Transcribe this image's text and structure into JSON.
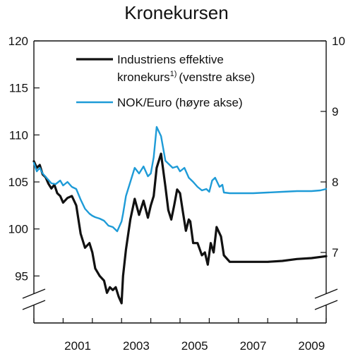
{
  "chart_data": {
    "type": "line",
    "title": "Kronekursen",
    "legend_position": "top-left",
    "x_range": [
      2000.0,
      2010.0
    ],
    "x_tick_labels": [
      "2001",
      "2003",
      "2005",
      "2007",
      "2009"
    ],
    "left_axis": {
      "range": [
        90,
        120
      ],
      "tick_values": [
        95,
        100,
        105,
        110,
        115,
        120
      ],
      "axis_break": true
    },
    "right_axis": {
      "range": [
        6,
        10
      ],
      "tick_values": [
        7,
        8,
        9,
        10
      ],
      "axis_break": true
    },
    "series": [
      {
        "name": "Industriens effektive kronekurs",
        "name_part1": "Industriens effektive",
        "name_part2": "kronekurs",
        "footnote": "1)",
        "name_suffix": "(venstre akse)",
        "axis": "left",
        "color": "#111111",
        "x": [
          2000.0,
          2000.1,
          2000.2,
          2000.3,
          2000.4,
          2000.5,
          2000.6,
          2000.7,
          2000.8,
          2000.9,
          2001.0,
          2001.15,
          2001.3,
          2001.45,
          2001.6,
          2001.75,
          2001.9,
          2002.0,
          2002.1,
          2002.25,
          2002.4,
          2002.5,
          2002.6,
          2002.7,
          2002.8,
          2002.9,
          2003.0,
          2003.05,
          2003.15,
          2003.3,
          2003.45,
          2003.6,
          2003.75,
          2003.9,
          2004.0,
          2004.1,
          2004.2,
          2004.35,
          2004.5,
          2004.6,
          2004.7,
          2004.8,
          2004.9,
          2005.0,
          2005.1,
          2005.2,
          2005.3,
          2005.35,
          2005.45,
          2005.6,
          2005.75,
          2005.85,
          2005.95,
          2006.05,
          2006.15,
          2006.25,
          2006.4,
          2006.5,
          2006.7,
          2007.0,
          2007.5,
          2008.0,
          2008.5,
          2009.0,
          2009.5,
          2010.0
        ],
        "values": [
          107.2,
          106.5,
          106.8,
          105.8,
          105.5,
          104.8,
          104.3,
          104.7,
          103.8,
          103.5,
          102.8,
          103.3,
          103.5,
          102.5,
          99.5,
          98.0,
          98.5,
          97.5,
          95.8,
          95.0,
          94.5,
          93.2,
          93.8,
          93.5,
          93.8,
          92.8,
          92.1,
          95.0,
          97.8,
          101.0,
          103.2,
          101.5,
          103.0,
          101.2,
          102.5,
          103.5,
          106.5,
          108.0,
          104.5,
          102.0,
          101.0,
          102.5,
          104.2,
          103.8,
          101.8,
          99.8,
          101.0,
          100.8,
          98.5,
          98.5,
          97.2,
          97.5,
          96.2,
          98.5,
          97.5,
          100.2,
          99.2,
          97.2,
          96.5,
          96.5,
          96.5,
          96.5,
          96.6,
          96.8,
          96.9,
          97.1
        ]
      },
      {
        "name": "NOK/Euro (høyre akse)",
        "axis": "right",
        "color": "#1e9bd7",
        "x": [
          2000.0,
          2000.1,
          2000.2,
          2000.3,
          2000.45,
          2000.6,
          2000.75,
          2000.9,
          2001.0,
          2001.15,
          2001.3,
          2001.45,
          2001.6,
          2001.75,
          2001.9,
          2002.0,
          2002.1,
          2002.25,
          2002.4,
          2002.55,
          2002.7,
          2002.85,
          2003.0,
          2003.05,
          2003.15,
          2003.3,
          2003.45,
          2003.6,
          2003.75,
          2003.9,
          2004.0,
          2004.1,
          2004.2,
          2004.35,
          2004.5,
          2004.6,
          2004.75,
          2004.9,
          2005.0,
          2005.15,
          2005.3,
          2005.45,
          2005.6,
          2005.75,
          2005.9,
          2006.0,
          2006.1,
          2006.2,
          2006.35,
          2006.45,
          2006.5,
          2006.7,
          2007.0,
          2007.5,
          2008.0,
          2008.5,
          2009.0,
          2009.5,
          2009.8,
          2010.0
        ],
        "values": [
          8.27,
          8.15,
          8.2,
          8.12,
          8.05,
          7.98,
          7.97,
          8.02,
          7.95,
          8.0,
          7.93,
          7.9,
          7.75,
          7.62,
          7.55,
          7.52,
          7.5,
          7.48,
          7.45,
          7.38,
          7.36,
          7.3,
          7.44,
          7.55,
          7.8,
          8.0,
          8.2,
          8.12,
          8.22,
          8.08,
          8.12,
          8.35,
          8.78,
          8.65,
          8.3,
          8.26,
          8.2,
          8.22,
          8.15,
          8.2,
          8.06,
          8.0,
          7.93,
          7.88,
          7.9,
          7.86,
          8.02,
          8.06,
          7.93,
          7.96,
          7.85,
          7.84,
          7.84,
          7.84,
          7.85,
          7.86,
          7.87,
          7.87,
          7.88,
          7.9
        ]
      }
    ]
  }
}
